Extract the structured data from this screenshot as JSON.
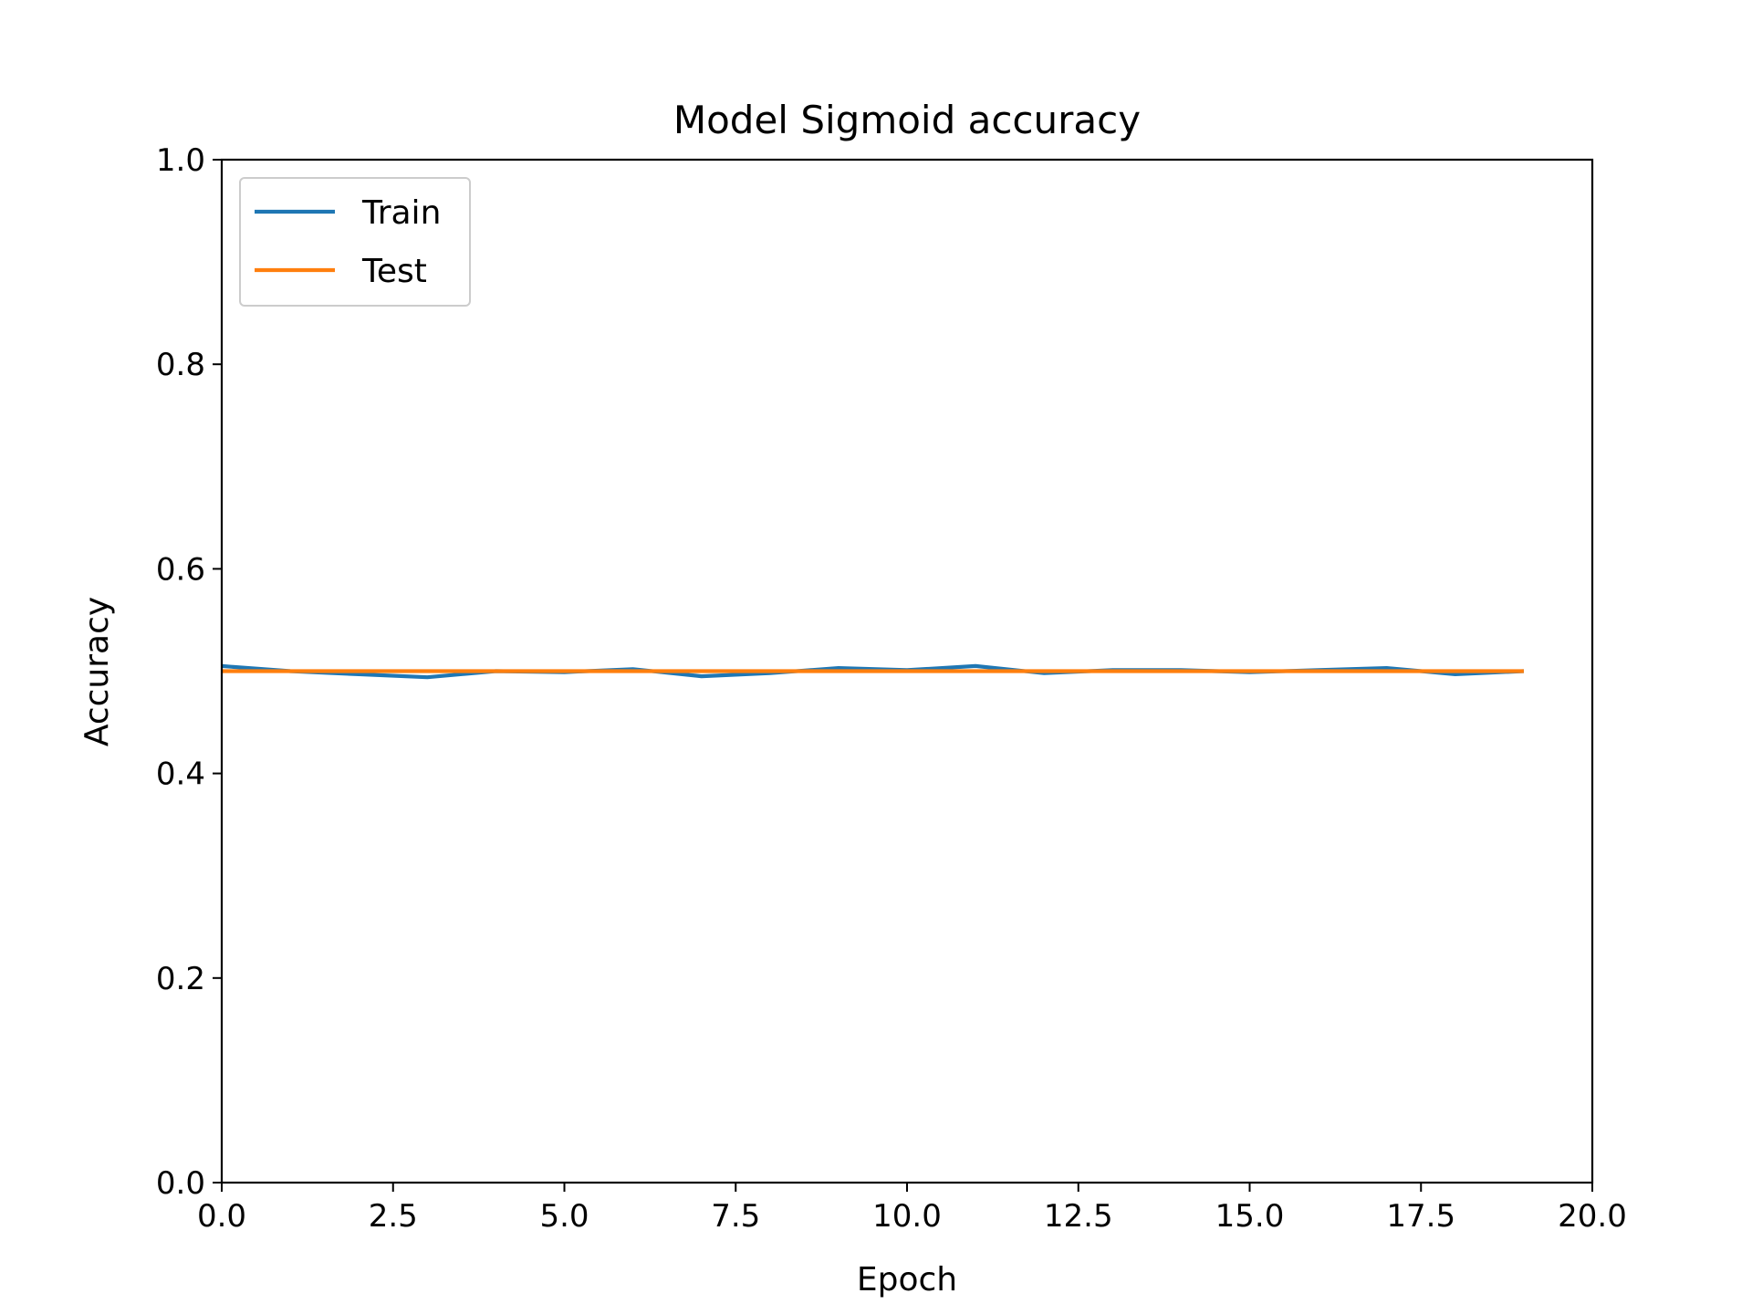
{
  "chart_data": {
    "type": "line",
    "title": "Model Sigmoid accuracy",
    "xlabel": "Epoch",
    "ylabel": "Accuracy",
    "xlim": [
      0,
      20
    ],
    "ylim": [
      0,
      1
    ],
    "xticks": [
      "0.0",
      "2.5",
      "5.0",
      "7.5",
      "10.0",
      "12.5",
      "15.0",
      "17.5",
      "20.0"
    ],
    "yticks": [
      "0.0",
      "0.2",
      "0.4",
      "0.6",
      "0.8",
      "1.0"
    ],
    "grid": false,
    "legend_position": "top-left",
    "x": [
      0,
      1,
      2,
      3,
      4,
      5,
      6,
      7,
      8,
      9,
      10,
      11,
      12,
      13,
      14,
      15,
      16,
      17,
      18,
      19
    ],
    "series": [
      {
        "name": "Train",
        "color": "#1f77b4",
        "values": [
          0.505,
          0.5,
          0.497,
          0.494,
          0.5,
          0.499,
          0.502,
          0.495,
          0.498,
          0.503,
          0.501,
          0.505,
          0.498,
          0.501,
          0.501,
          0.499,
          0.501,
          0.503,
          0.497,
          0.5
        ]
      },
      {
        "name": "Test",
        "color": "#ff7f0e",
        "values": [
          0.5,
          0.5,
          0.5,
          0.5,
          0.5,
          0.5,
          0.5,
          0.5,
          0.5,
          0.5,
          0.5,
          0.5,
          0.5,
          0.5,
          0.5,
          0.5,
          0.5,
          0.5,
          0.5,
          0.5
        ]
      }
    ]
  }
}
